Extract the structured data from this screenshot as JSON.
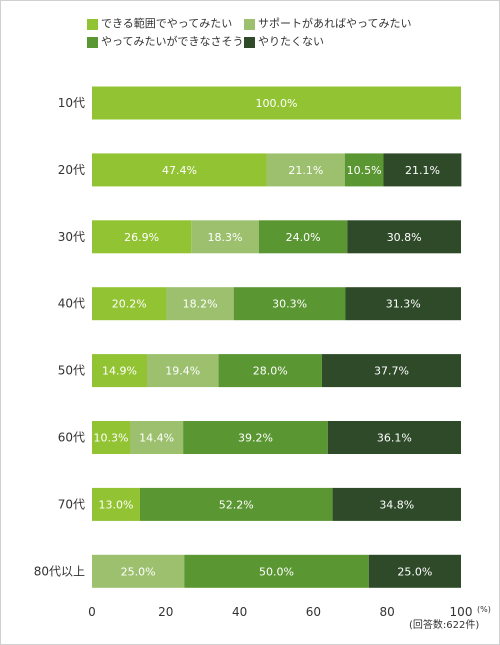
{
  "chart_data": {
    "type": "bar",
    "orientation": "horizontal",
    "stacked": true,
    "categories": [
      "10代",
      "20代",
      "30代",
      "40代",
      "50代",
      "60代",
      "70代",
      "80代以上"
    ],
    "series": [
      {
        "name": "できる範囲でやってみたい",
        "color": "#92c332",
        "values": [
          100.0,
          47.4,
          26.9,
          20.2,
          14.9,
          10.3,
          13.0,
          0
        ]
      },
      {
        "name": "サポートがあればやってみたい",
        "color": "#9cc06e",
        "values": [
          0,
          21.1,
          18.3,
          18.2,
          19.4,
          14.4,
          0,
          25.0
        ]
      },
      {
        "name": "やってみたいができなさそう",
        "color": "#5a9632",
        "values": [
          0,
          10.5,
          24.0,
          30.3,
          28.0,
          39.2,
          52.2,
          50.0
        ]
      },
      {
        "name": "やりたくない",
        "color": "#2e4a29",
        "values": [
          0,
          21.1,
          30.8,
          31.3,
          37.7,
          36.1,
          34.8,
          25.0
        ]
      }
    ],
    "xlim": [
      0,
      100
    ],
    "xticks": [
      0,
      20,
      40,
      60,
      80,
      100
    ],
    "xtick_labels": [
      "0",
      "20",
      "40",
      "60",
      "80",
      "100"
    ],
    "unit": "(%)",
    "value_suffix": "%",
    "legend_position": "top-left",
    "grid": false,
    "note": "(回答数:622件)"
  }
}
